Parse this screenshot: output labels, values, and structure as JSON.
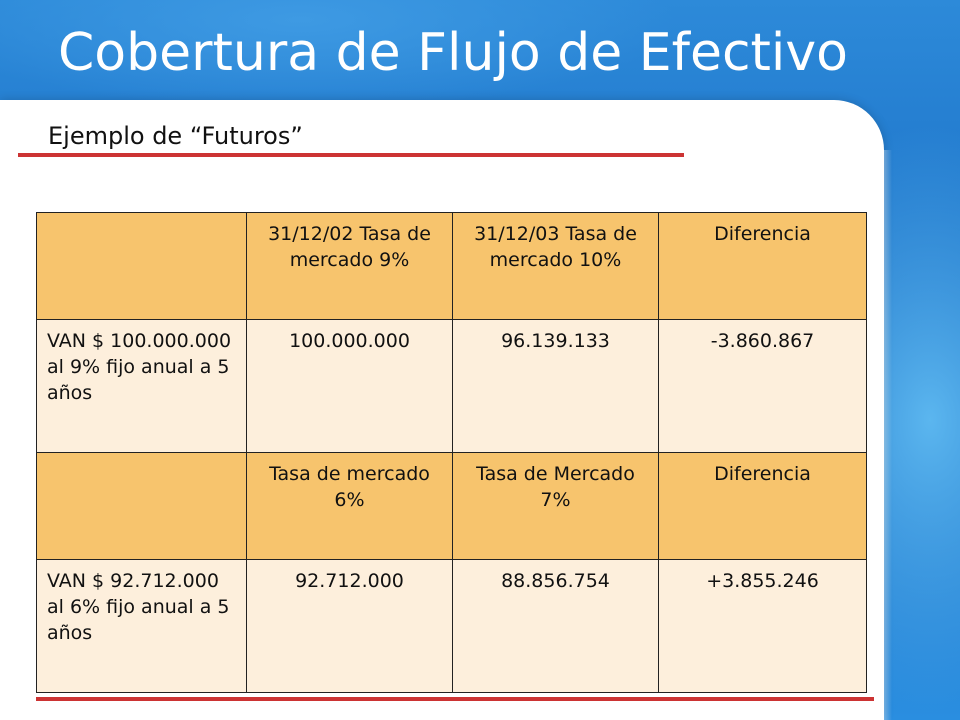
{
  "slide": {
    "title": "Cobertura de Flujo de Efectivo",
    "subtitle": "Ejemplo de “Futuros”"
  },
  "table": {
    "rows": [
      {
        "type": "header",
        "cells": [
          "",
          "31/12/02 Tasa de mercado 9%",
          "31/12/03 Tasa de mercado 10%",
          "Diferencia"
        ]
      },
      {
        "type": "value",
        "cells": [
          "VAN $ 100.000.000 al 9% fijo anual a 5 años",
          "100.000.000",
          "96.139.133",
          "-3.860.867"
        ]
      },
      {
        "type": "header",
        "cells": [
          "",
          "Tasa de mercado 6%",
          "Tasa de Mercado 7%",
          "Diferencia"
        ]
      },
      {
        "type": "value",
        "cells": [
          "VAN $ 92.712.000 al 6% fijo anual a 5 años",
          "92.712.000",
          "88.856.754",
          "+3.855.246"
        ]
      }
    ]
  },
  "colors": {
    "header_fill": "#f7c46d",
    "value_fill": "#fdefdc",
    "accent_rule": "#cc3333",
    "background_blue": "#1a73c8"
  }
}
